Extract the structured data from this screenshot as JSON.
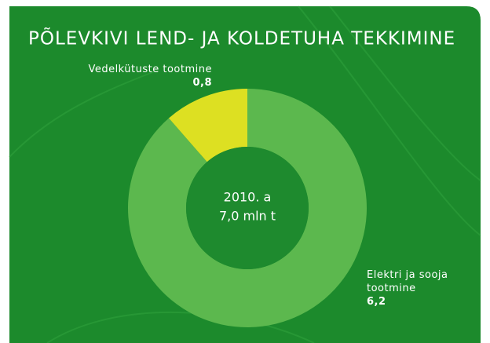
{
  "chart_data": {
    "type": "donut",
    "title": "PÕLEVKIVI LEND- JA KOLDETUHA TEKKIMINE",
    "categories": [
      "Elektri ja sooja tootmine",
      "Vedelkütuste tootmine"
    ],
    "values": [
      6.2,
      0.8
    ],
    "value_labels": [
      "6,2",
      "0,8"
    ],
    "colors": [
      "#5cb84e",
      "#dde022"
    ],
    "center_text": [
      "2010. a",
      "7,0 mln t"
    ]
  }
}
